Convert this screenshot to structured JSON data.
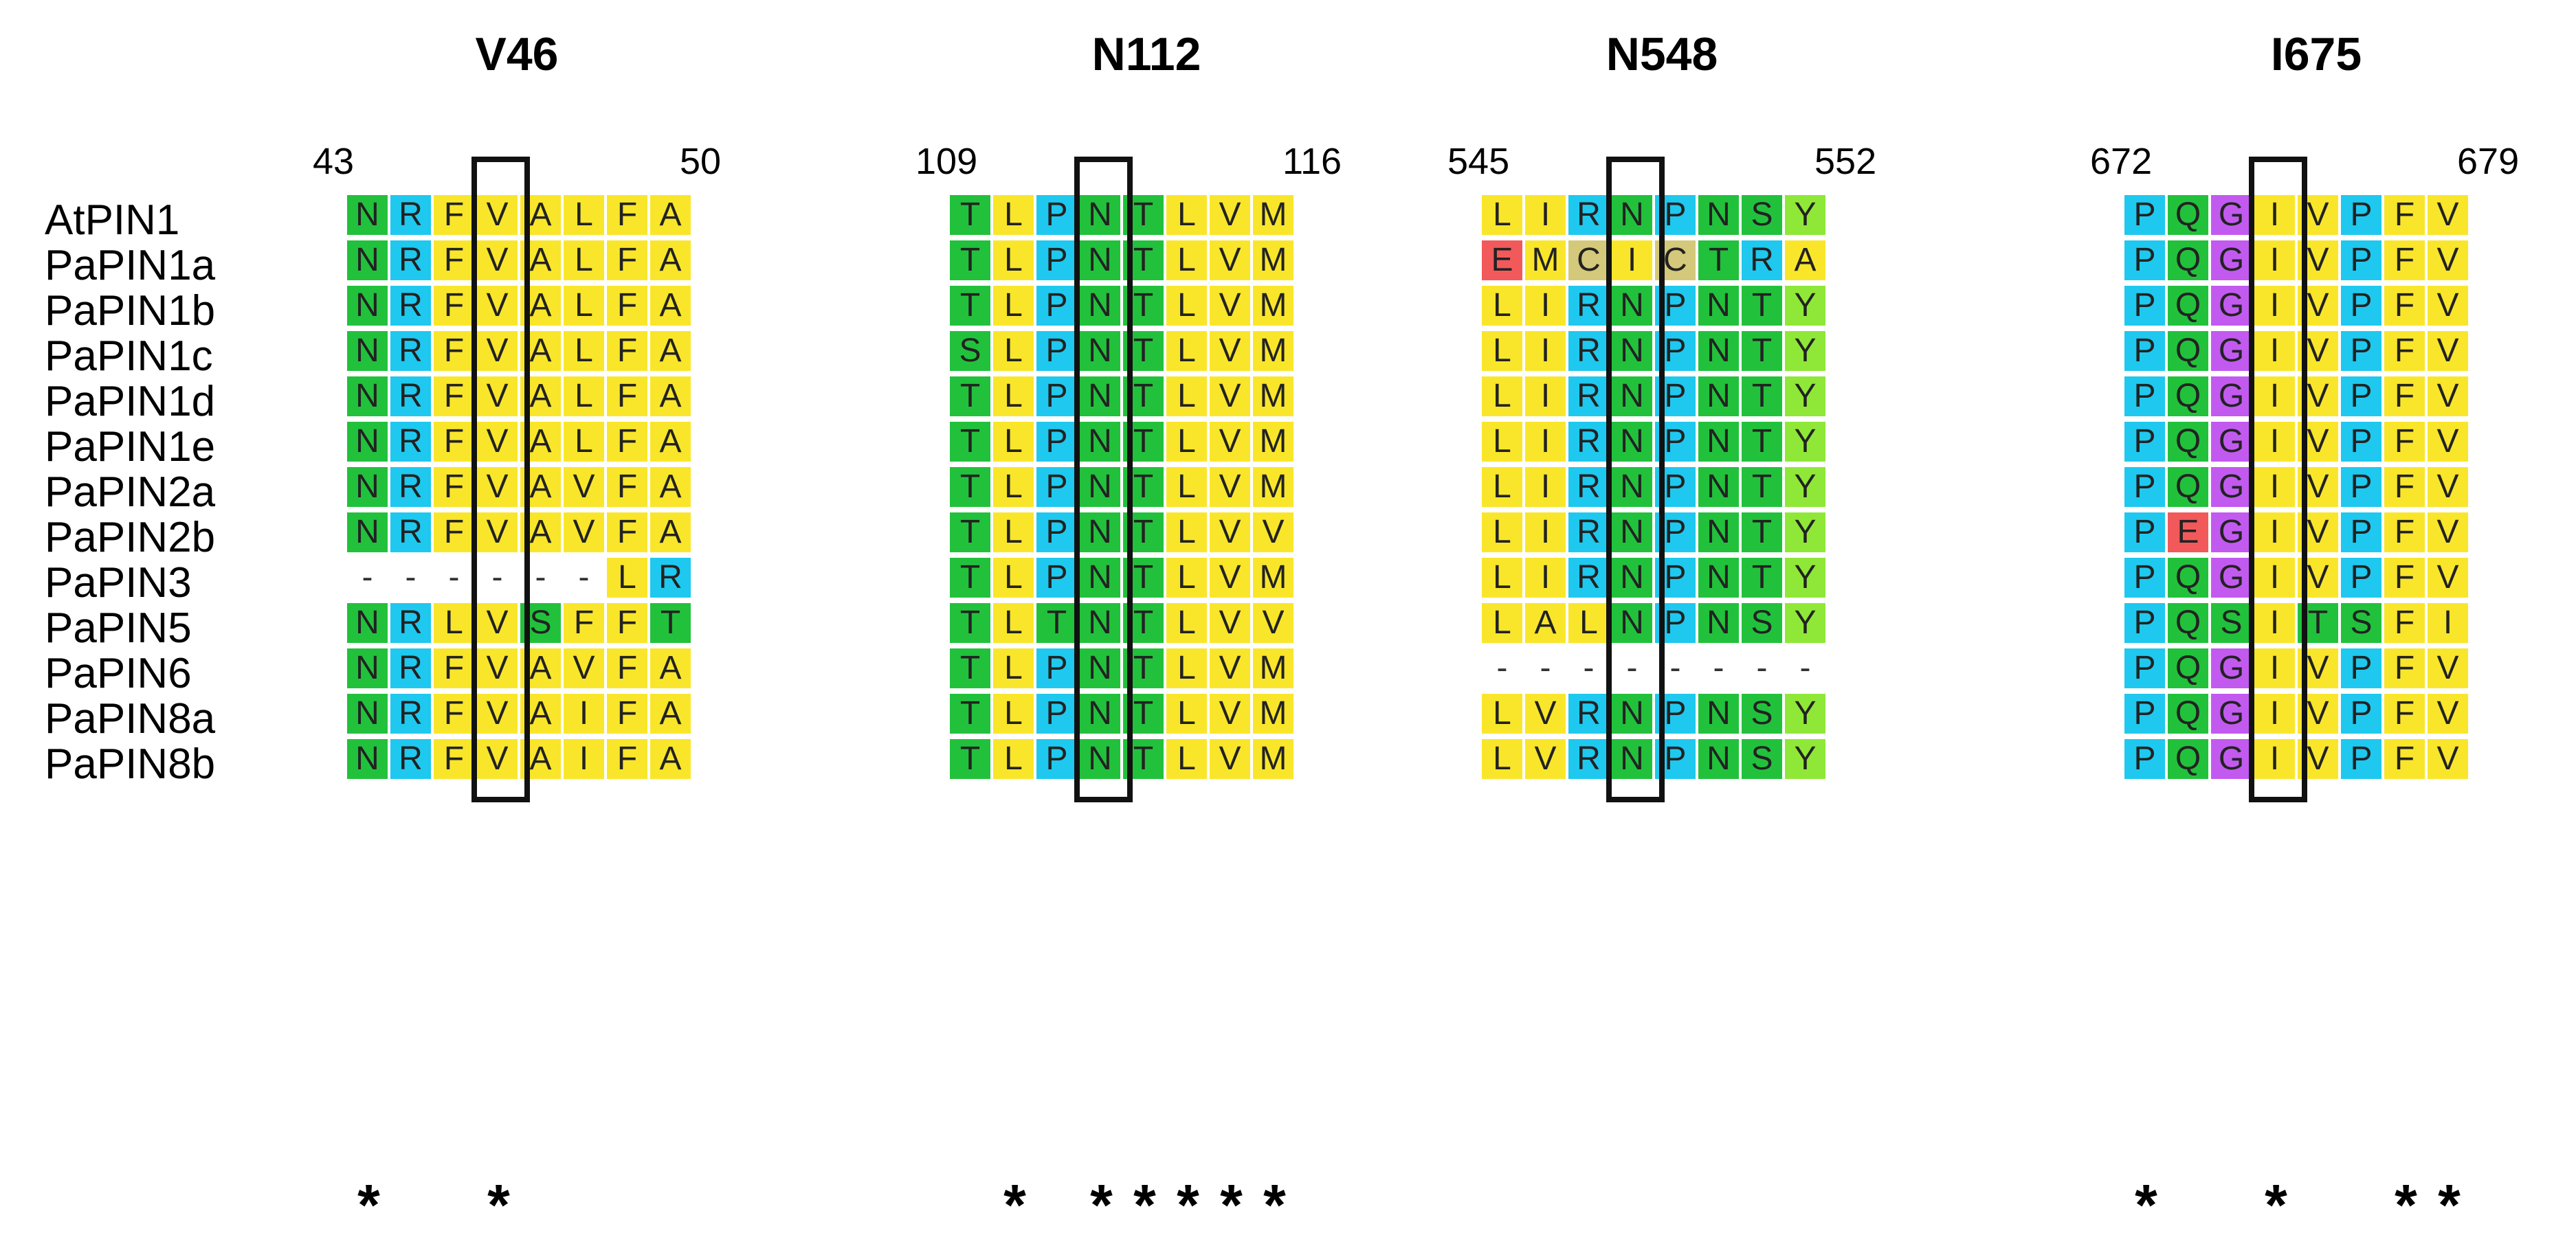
{
  "colors": {
    "N": "#22c13c",
    "T": "#22c13c",
    "S": "#22c13c",
    "Q": "#22c13c",
    "R": "#1fc8ee",
    "P": "#1fc8ee",
    "V": "#f9e62a",
    "A": "#f9e62a",
    "L": "#f9e62a",
    "F": "#f9e62a",
    "I": "#f9e62a",
    "M": "#f9e62a",
    "G": "#c25af0",
    "E": "#f2595a",
    "C": "#d4c97a",
    "Y": "#8fe838",
    "-": "#ffffff"
  },
  "sequence_names": [
    "AtPIN1",
    "PaPIN1a",
    "PaPIN1b",
    "PaPIN1c",
    "PaPIN1d",
    "PaPIN1e",
    "PaPIN2a",
    "PaPIN2b",
    "PaPIN3",
    "PaPIN5",
    "PaPIN6",
    "PaPIN8a",
    "PaPIN8b"
  ],
  "panels": [
    {
      "title": "V46",
      "start": "43",
      "end": "50",
      "rows": [
        "NRFVALFA",
        "NRFVALFA",
        "NRFVALFA",
        "NRFVALFA",
        "NRFVALFA",
        "NRFVALFA",
        "NRFVAVFA",
        "NRFVAVFA",
        "------LR",
        "NRLVSFFT",
        "NRFVAVFA",
        "NRFVAIFA",
        "NRFVAIFA"
      ],
      "stars": [
        0,
        3
      ],
      "box_col": 3
    },
    {
      "title": "N112",
      "start": "109",
      "end": "116",
      "rows": [
        "TLPNTLVM",
        "TLPNTLVM",
        "TLPNTLVM",
        "SLPNTLVM",
        "TLPNTLVM",
        "TLPNTLVM",
        "TLPNTLVM",
        "TLPNTLVV",
        "TLPNTLVM",
        "TLTNTLVV",
        "TLPNTLVM",
        "TLPNTLVM",
        "TLPNTLVM"
      ],
      "stars": [
        1,
        3,
        4,
        5,
        6,
        7
      ],
      "box_col": 3
    },
    {
      "title": "N548",
      "start": "545",
      "end": "552",
      "rows": [
        "LIRNPNSY",
        "EMCICTRA",
        "LIRNPNTY",
        "LIRNPNTY",
        "LIRNPNTY",
        "LIRNPNTY",
        "LIRNPNTY",
        "LIRNPNTY",
        "LIRNPNTY",
        "LALNPNSY",
        "--------",
        "LVRNPNSY",
        "LVRNPNSY"
      ],
      "stars": [],
      "box_col": 3
    },
    {
      "title": "I675",
      "start": "672",
      "end": "679",
      "rows": [
        "PQGIVPFV",
        "PQGIVPFV",
        "PQGIVPFV",
        "PQGIVPFV",
        "PQGIVPFV",
        "PQGIVPFV",
        "PQGIVPFV",
        "PEGIVPFV",
        "PQGIVPFV",
        "PQSITSFI",
        "PQGIVPFV",
        "PQGIVPFV",
        "PQGIVPFV"
      ],
      "stars": [
        0,
        3,
        6,
        7
      ],
      "box_col": 3
    }
  ]
}
